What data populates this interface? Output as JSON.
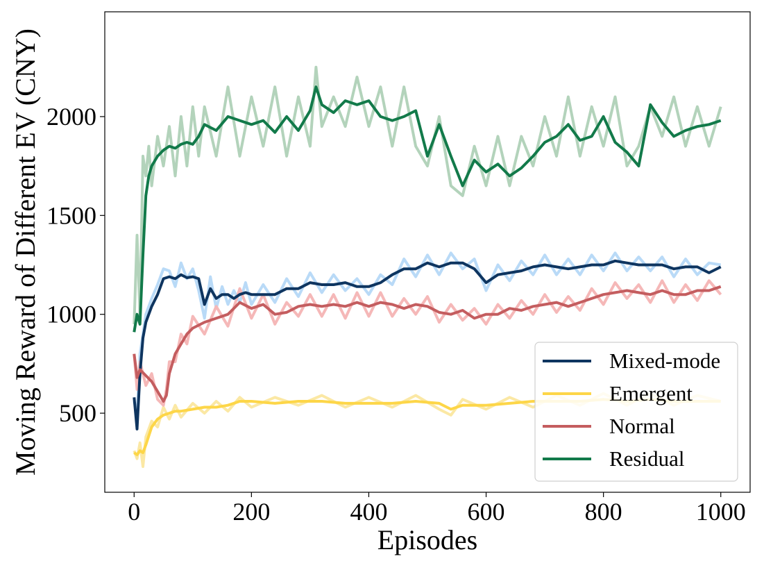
{
  "chart_data": {
    "type": "line",
    "title": "",
    "xlabel": "Episodes",
    "ylabel": "Moving Reward of Different EV (CNY)",
    "xlim": [
      -50,
      1050
    ],
    "ylim": [
      100,
      2530
    ],
    "xticks": [
      0,
      200,
      400,
      600,
      800,
      1000
    ],
    "yticks": [
      500,
      1000,
      1500,
      2000
    ],
    "grid": false,
    "legend_position": "bottom-right",
    "series": [
      {
        "name": "Mixed-mode",
        "color": "#0e3560",
        "raw_color": "#b9daf7",
        "x": [
          0,
          5,
          10,
          15,
          20,
          30,
          40,
          50,
          60,
          70,
          80,
          90,
          100,
          110,
          120,
          130,
          140,
          150,
          160,
          170,
          180,
          190,
          200,
          220,
          240,
          260,
          280,
          300,
          320,
          340,
          360,
          380,
          400,
          420,
          440,
          460,
          480,
          500,
          520,
          540,
          560,
          580,
          600,
          620,
          640,
          660,
          680,
          700,
          720,
          740,
          760,
          780,
          800,
          820,
          840,
          860,
          880,
          900,
          920,
          940,
          960,
          980,
          1000
        ],
        "smooth": [
          580,
          420,
          700,
          880,
          960,
          1040,
          1100,
          1180,
          1190,
          1180,
          1200,
          1185,
          1190,
          1180,
          1050,
          1130,
          1080,
          1100,
          1100,
          1080,
          1100,
          1110,
          1100,
          1100,
          1100,
          1130,
          1130,
          1160,
          1150,
          1150,
          1160,
          1140,
          1140,
          1160,
          1200,
          1230,
          1230,
          1260,
          1240,
          1260,
          1260,
          1230,
          1160,
          1200,
          1210,
          1220,
          1240,
          1250,
          1240,
          1230,
          1240,
          1250,
          1250,
          1270,
          1260,
          1250,
          1250,
          1250,
          1230,
          1240,
          1240,
          1210,
          1240
        ],
        "raw": [
          560,
          500,
          800,
          900,
          1000,
          1080,
          1150,
          1230,
          1220,
          1140,
          1260,
          1180,
          1230,
          1120,
          980,
          1190,
          1030,
          1140,
          1050,
          1120,
          1060,
          1160,
          1050,
          1150,
          1060,
          1180,
          1090,
          1210,
          1110,
          1200,
          1120,
          1180,
          1100,
          1200,
          1150,
          1280,
          1190,
          1300,
          1200,
          1310,
          1230,
          1280,
          1120,
          1250,
          1170,
          1270,
          1200,
          1300,
          1200,
          1280,
          1200,
          1300,
          1220,
          1310,
          1220,
          1290,
          1220,
          1290,
          1190,
          1280,
          1200,
          1260,
          1250
        ]
      },
      {
        "name": "Emergent",
        "color": "#fdd648",
        "raw_color": "#fbe8a4",
        "x": [
          0,
          5,
          10,
          15,
          20,
          30,
          40,
          50,
          60,
          70,
          80,
          100,
          120,
          140,
          160,
          180,
          200,
          240,
          280,
          320,
          360,
          400,
          440,
          480,
          520,
          540,
          560,
          600,
          640,
          680,
          720,
          760,
          800,
          840,
          880,
          920,
          960,
          1000
        ],
        "smooth": [
          300,
          290,
          310,
          300,
          340,
          430,
          470,
          490,
          500,
          510,
          510,
          520,
          530,
          530,
          540,
          560,
          560,
          550,
          560,
          560,
          550,
          550,
          550,
          560,
          550,
          520,
          540,
          540,
          550,
          560,
          560,
          560,
          570,
          560,
          570,
          560,
          560,
          560
        ],
        "raw": [
          310,
          270,
          350,
          230,
          380,
          460,
          430,
          530,
          470,
          540,
          480,
          550,
          500,
          560,
          510,
          580,
          530,
          580,
          540,
          590,
          530,
          580,
          530,
          590,
          520,
          490,
          570,
          520,
          580,
          530,
          590,
          540,
          600,
          540,
          600,
          540,
          590,
          560
        ]
      },
      {
        "name": "Normal",
        "color": "#c45d5f",
        "raw_color": "#f5b8b8",
        "x": [
          0,
          5,
          10,
          20,
          30,
          40,
          50,
          55,
          60,
          70,
          80,
          90,
          100,
          120,
          140,
          160,
          180,
          200,
          220,
          240,
          260,
          280,
          300,
          320,
          340,
          360,
          380,
          400,
          420,
          440,
          460,
          480,
          500,
          520,
          540,
          560,
          580,
          600,
          620,
          640,
          660,
          680,
          700,
          720,
          740,
          760,
          780,
          800,
          820,
          840,
          860,
          880,
          900,
          920,
          940,
          960,
          980,
          1000
        ],
        "smooth": [
          800,
          680,
          720,
          690,
          660,
          610,
          560,
          590,
          700,
          800,
          850,
          900,
          930,
          960,
          980,
          1000,
          1060,
          1030,
          1050,
          1000,
          1010,
          1040,
          1050,
          1040,
          1050,
          1040,
          1060,
          1040,
          1060,
          1050,
          1030,
          1050,
          1040,
          1010,
          1000,
          1020,
          980,
          1000,
          1000,
          1030,
          1020,
          1040,
          1050,
          1060,
          1040,
          1060,
          1080,
          1100,
          1110,
          1120,
          1110,
          1100,
          1120,
          1100,
          1100,
          1120,
          1120,
          1140
        ],
        "raw": [
          800,
          620,
          760,
          640,
          700,
          570,
          540,
          620,
          760,
          760,
          900,
          850,
          990,
          900,
          1040,
          940,
          1130,
          980,
          1100,
          950,
          1060,
          990,
          1100,
          990,
          1100,
          980,
          1110,
          990,
          1110,
          990,
          1080,
          1000,
          1090,
          960,
          1050,
          970,
          1030,
          950,
          1050,
          980,
          1070,
          1000,
          1100,
          1010,
          1090,
          1020,
          1130,
          1050,
          1160,
          1080,
          1150,
          1060,
          1170,
          1060,
          1150,
          1070,
          1170,
          1100
        ]
      },
      {
        "name": "Residual",
        "color": "#127a4a",
        "raw_color": "#b3d3bb",
        "x": [
          0,
          5,
          10,
          15,
          20,
          25,
          30,
          40,
          50,
          60,
          70,
          80,
          90,
          100,
          110,
          120,
          140,
          160,
          180,
          200,
          220,
          240,
          260,
          280,
          300,
          310,
          320,
          340,
          360,
          380,
          400,
          420,
          440,
          460,
          480,
          500,
          520,
          540,
          560,
          580,
          600,
          620,
          640,
          660,
          680,
          700,
          720,
          740,
          760,
          780,
          800,
          820,
          840,
          860,
          880,
          900,
          920,
          940,
          960,
          980,
          1000
        ],
        "smooth": [
          910,
          1000,
          950,
          1300,
          1600,
          1700,
          1750,
          1800,
          1830,
          1850,
          1840,
          1860,
          1870,
          1860,
          1900,
          1960,
          1930,
          2000,
          1980,
          1960,
          1980,
          1920,
          2000,
          1930,
          2030,
          2150,
          2060,
          2020,
          2080,
          2060,
          2080,
          2000,
          1980,
          2000,
          2030,
          1800,
          1960,
          1800,
          1650,
          1780,
          1720,
          1760,
          1700,
          1740,
          1800,
          1870,
          1900,
          1960,
          1880,
          1900,
          2000,
          1870,
          1820,
          1750,
          2060,
          1970,
          1900,
          1930,
          1950,
          1960,
          1980
        ],
        "raw": [
          950,
          1400,
          1000,
          1800,
          1700,
          1850,
          1650,
          1900,
          1750,
          1950,
          1700,
          2000,
          1750,
          2050,
          1800,
          2050,
          1800,
          2150,
          1800,
          2100,
          1850,
          2150,
          1800,
          2100,
          1850,
          2250,
          1950,
          2100,
          1950,
          2200,
          1950,
          2150,
          1850,
          2150,
          1850,
          1750,
          2000,
          1650,
          1600,
          1850,
          1650,
          1900,
          1650,
          1900,
          1750,
          2000,
          1800,
          2100,
          1800,
          2050,
          1850,
          2100,
          1750,
          1850,
          2050,
          1900,
          2100,
          1850,
          2050,
          1850,
          2050
        ]
      }
    ]
  }
}
